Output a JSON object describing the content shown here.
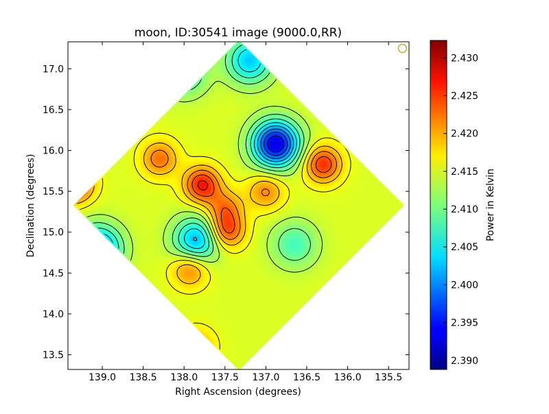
{
  "chart_data": {
    "type": "heatmap",
    "title": "moon, ID:30541 image (9000.0,RR)",
    "xlabel": "Right Ascension (degrees)",
    "ylabel": "Declination (degrees)",
    "xlim": [
      139.42,
      135.25
    ],
    "ylim": [
      13.32,
      17.33
    ],
    "x_inverted": true,
    "x_ticks": [
      139.0,
      138.5,
      138.0,
      137.5,
      137.0,
      136.5,
      136.0,
      135.5
    ],
    "x_tick_labels": [
      "139.0",
      "138.5",
      "138.0",
      "137.5",
      "137.0",
      "136.5",
      "136.0",
      "135.5"
    ],
    "y_ticks": [
      13.5,
      14.0,
      14.5,
      15.0,
      15.5,
      16.0,
      16.5,
      17.0
    ],
    "y_tick_labels": [
      "13.5",
      "14.0",
      "14.5",
      "15.0",
      "15.5",
      "16.0",
      "16.5",
      "17.0"
    ],
    "colormap": "jet",
    "colorbar": {
      "label": "Power in Kelvin",
      "range": [
        2.3888,
        2.4323
      ],
      "ticks": [
        2.39,
        2.395,
        2.4,
        2.405,
        2.41,
        2.415,
        2.42,
        2.425,
        2.43
      ],
      "tick_labels": [
        "2.390",
        "2.395",
        "2.400",
        "2.405",
        "2.410",
        "2.415",
        "2.420",
        "2.425",
        "2.430"
      ]
    },
    "contours": true,
    "grid": false,
    "map_footprint": "diamond (rotated square) centered at RA 137.33, Dec 15.33",
    "features": [
      {
        "kind": "maximum",
        "ra": 139.35,
        "dec": 15.6,
        "value": 2.428
      },
      {
        "kind": "maximum",
        "ra": 137.78,
        "dec": 15.58,
        "value": 2.426
      },
      {
        "kind": "maximum",
        "ra": 137.48,
        "dec": 15.02,
        "value": 2.424
      },
      {
        "kind": "maximum",
        "ra": 136.3,
        "dec": 15.83,
        "value": 2.425
      },
      {
        "kind": "maximum",
        "ra": 137.5,
        "dec": 15.3,
        "value": 2.421
      },
      {
        "kind": "maximum",
        "ra": 137.0,
        "dec": 15.5,
        "value": 2.421
      },
      {
        "kind": "maximum",
        "ra": 138.3,
        "dec": 15.9,
        "value": 2.422
      },
      {
        "kind": "maximum",
        "ra": 137.93,
        "dec": 14.55,
        "value": 2.422
      },
      {
        "kind": "maximum",
        "ra": 137.85,
        "dec": 13.6,
        "value": 2.42
      },
      {
        "kind": "minimum",
        "ra": 136.88,
        "dec": 16.08,
        "value": 2.393
      },
      {
        "kind": "minimum",
        "ra": 137.2,
        "dec": 17.1,
        "value": 2.403
      },
      {
        "kind": "minimum",
        "ra": 138.0,
        "dec": 16.95,
        "value": 2.407
      },
      {
        "kind": "minimum",
        "ra": 137.85,
        "dec": 14.9,
        "value": 2.402
      },
      {
        "kind": "minimum",
        "ra": 139.05,
        "dec": 14.8,
        "value": 2.4
      },
      {
        "kind": "minimum",
        "ra": 136.65,
        "dec": 14.85,
        "value": 2.408
      }
    ],
    "marker": {
      "shape": "circle",
      "ra": 135.33,
      "dec": 17.25,
      "color": "#bfae3c"
    }
  }
}
